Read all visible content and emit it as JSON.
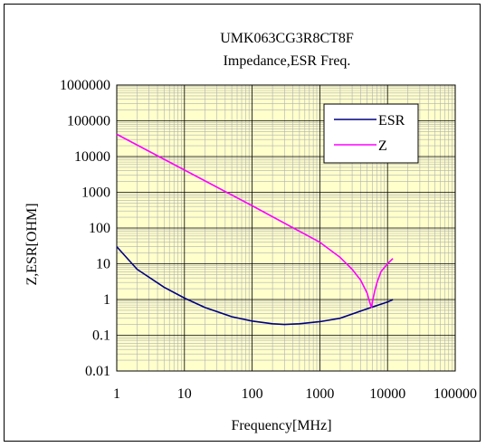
{
  "chart_data": {
    "type": "line",
    "title": "UMK063CG3R8CT8F",
    "subtitle": "Impedance,ESR Freq.",
    "xlabel": "Frequency[MHz]",
    "ylabel": "Z,ESR[OHM]",
    "x_scale": "log",
    "y_scale": "log",
    "xlim": [
      1,
      100000
    ],
    "ylim": [
      0.01,
      1000000
    ],
    "x_ticks": [
      "1",
      "10",
      "100",
      "1000",
      "10000",
      "100000"
    ],
    "y_ticks": [
      "0.01",
      "0.1",
      "1",
      "10",
      "100",
      "1000",
      "10000",
      "100000",
      "1000000"
    ],
    "grid": true,
    "legend_position": "top-right",
    "plot_background": "#ffffcc",
    "series": [
      {
        "name": "ESR",
        "color": "#000080",
        "x": [
          1,
          2,
          5,
          10,
          20,
          50,
          100,
          200,
          300,
          500,
          1000,
          2000,
          5000,
          10000,
          12000
        ],
        "y": [
          30,
          7,
          2.2,
          1.1,
          0.6,
          0.33,
          0.25,
          0.21,
          0.2,
          0.21,
          0.24,
          0.3,
          0.55,
          0.85,
          1.0
        ]
      },
      {
        "name": "Z",
        "color": "#ff00ff",
        "x": [
          1,
          10,
          100,
          1000,
          2000,
          3000,
          4000,
          5000,
          5500,
          5800,
          6000,
          6500,
          7000,
          8000,
          10000,
          12000
        ],
        "y": [
          42000,
          4200,
          420,
          40,
          15,
          7,
          3.5,
          1.5,
          0.8,
          0.6,
          0.9,
          1.8,
          3,
          6,
          10,
          14
        ]
      }
    ]
  }
}
